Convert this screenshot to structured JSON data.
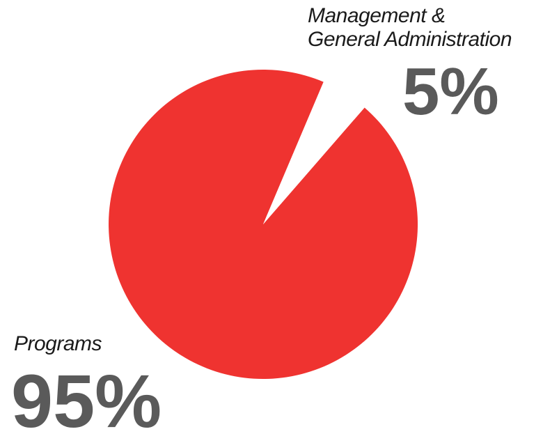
{
  "chart_data": {
    "type": "pie",
    "slices": [
      {
        "label_lines": [
          "Management &",
          "General Administration"
        ],
        "value": 5,
        "value_label": "5%",
        "color": "#ffffff",
        "exploded": false
      },
      {
        "label_lines": [
          "Programs"
        ],
        "value": 95,
        "value_label": "95%",
        "color": "#ef3330",
        "exploded": false
      }
    ]
  }
}
